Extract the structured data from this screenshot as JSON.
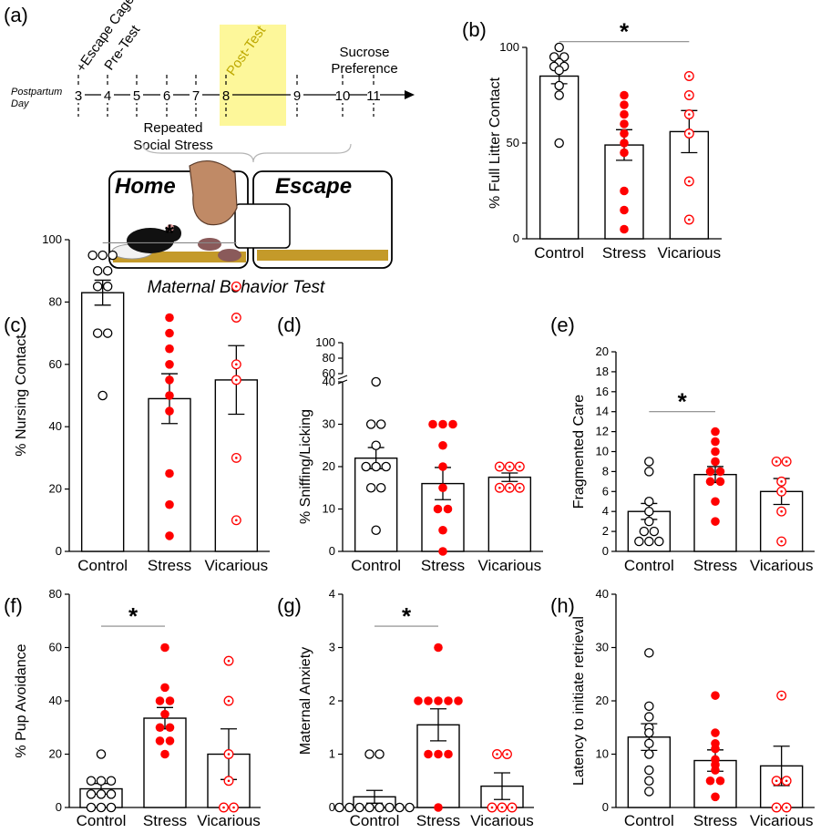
{
  "colors": {
    "control": "#000000",
    "stress": "#ff0000",
    "vicarious": "#ff0000",
    "highlight": "#fdf79a",
    "bracket": "#b5b5b5",
    "sig_line": "#888888"
  },
  "timeline": {
    "panel_label": "(a)",
    "axis_label_line1": "Postpartum",
    "axis_label_line2": "Day",
    "days": [
      "3",
      "4",
      "5",
      "6",
      "7",
      "8",
      "9",
      "10",
      "11"
    ],
    "event_escape": "+Escape Cage",
    "event_pretest": "Pre-Test",
    "event_posttest": "Post-Test",
    "event_sucrose_line1": "Sucrose",
    "event_sucrose_line2": "Preference",
    "stress_line1": "Repeated",
    "stress_line2": "Social Stress",
    "cage_home": "Home",
    "cage_escape": "Escape",
    "caption": "Maternal Behavior Test"
  },
  "chart_data": [
    {
      "id": "b",
      "panel_label": "(b)",
      "type": "bar",
      "ylabel": "% Full Litter Contact",
      "ylim": [
        0,
        100
      ],
      "yticks": [
        "0",
        "50",
        "100"
      ],
      "ytick_values": [
        0,
        50,
        100
      ],
      "categories": [
        "Control",
        "Stress",
        "Vicarious"
      ],
      "means": [
        85,
        49,
        56
      ],
      "sems": [
        4,
        8,
        11
      ],
      "points": [
        [
          100,
          95,
          95,
          92,
          90,
          90,
          88,
          80,
          75,
          50
        ],
        [
          75,
          70,
          65,
          60,
          55,
          50,
          45,
          25,
          15,
          5
        ],
        [
          85,
          75,
          65,
          55,
          30,
          10
        ]
      ],
      "significance": {
        "label": "*",
        "from": 0,
        "to": 2,
        "y": 103
      }
    },
    {
      "id": "c",
      "panel_label": "(c)",
      "type": "bar",
      "ylabel": "% Nursing Contact",
      "ylim": [
        0,
        100
      ],
      "yticks": [
        "0",
        "20",
        "40",
        "60",
        "80",
        "100"
      ],
      "ytick_values": [
        0,
        20,
        40,
        60,
        80,
        100
      ],
      "categories": [
        "Control",
        "Stress",
        "Vicarious"
      ],
      "means": [
        83,
        49,
        55
      ],
      "sems": [
        4,
        8,
        11
      ],
      "points": [
        [
          95,
          95,
          95,
          90,
          90,
          85,
          85,
          70,
          70,
          50
        ],
        [
          75,
          70,
          65,
          60,
          55,
          50,
          45,
          25,
          15,
          5
        ],
        [
          85,
          75,
          60,
          55,
          30,
          10
        ]
      ],
      "significance": {
        "label": "*",
        "from": 0,
        "to": 2,
        "y": 99
      }
    },
    {
      "id": "d",
      "panel_label": "(d)",
      "type": "bar",
      "ylabel": "%  Sniffing/Licking",
      "ylim": [
        0,
        40
      ],
      "broken_axis": true,
      "yticks": [
        "0",
        "10",
        "20",
        "30",
        "40"
      ],
      "ytick_values": [
        0,
        10,
        20,
        30,
        40
      ],
      "upper_ticks": [
        "60",
        "80",
        "100"
      ],
      "upper_tick_values": [
        60,
        80,
        100
      ],
      "categories": [
        "Control",
        "Stress",
        "Vicarious"
      ],
      "means": [
        22,
        16,
        17.5
      ],
      "sems": [
        2.5,
        3.8,
        1
      ],
      "points": [
        [
          40,
          30,
          30,
          25,
          20,
          20,
          20,
          15,
          15,
          5
        ],
        [
          30,
          30,
          30,
          25,
          20,
          15,
          10,
          10,
          5,
          0
        ],
        [
          20,
          20,
          20,
          15,
          15,
          15
        ]
      ],
      "significance": null
    },
    {
      "id": "e",
      "panel_label": "(e)",
      "type": "bar",
      "ylabel": "Fragmented Care",
      "ylim": [
        0,
        20
      ],
      "yticks": [
        "0",
        "2",
        "4",
        "6",
        "8",
        "10",
        "12",
        "14",
        "16",
        "18",
        "20"
      ],
      "ytick_values": [
        0,
        2,
        4,
        6,
        8,
        10,
        12,
        14,
        16,
        18,
        20
      ],
      "categories": [
        "Control",
        "Stress",
        "Vicarious"
      ],
      "means": [
        4,
        7.7,
        6
      ],
      "sems": [
        0.8,
        0.8,
        1.3
      ],
      "points": [
        [
          9,
          8,
          5,
          4,
          3,
          2,
          2,
          1,
          1,
          1
        ],
        [
          12,
          11,
          10,
          9,
          8,
          8,
          7,
          7,
          5,
          3
        ],
        [
          9,
          9,
          7,
          6,
          4,
          1
        ]
      ],
      "significance": {
        "label": "*",
        "from": 0,
        "to": 1,
        "y": 14
      }
    },
    {
      "id": "f",
      "panel_label": "(f)",
      "type": "bar",
      "ylabel": "% Pup Avoidance",
      "ylim": [
        0,
        80
      ],
      "yticks": [
        "0",
        "20",
        "40",
        "60",
        "80"
      ],
      "ytick_values": [
        0,
        20,
        40,
        60,
        80
      ],
      "categories": [
        "Control",
        "Stress",
        "Vicarious"
      ],
      "means": [
        7,
        33.5,
        20
      ],
      "sems": [
        2,
        4,
        9.5
      ],
      "points": [
        [
          20,
          10,
          10,
          10,
          5,
          5,
          5,
          0,
          0,
          0
        ],
        [
          60,
          45,
          40,
          40,
          35,
          30,
          30,
          25,
          25,
          20
        ],
        [
          55,
          40,
          20,
          10,
          0,
          0
        ]
      ],
      "significance": {
        "label": "*",
        "from": 0,
        "to": 1,
        "y": 68
      }
    },
    {
      "id": "g",
      "panel_label": "(g)",
      "type": "bar",
      "ylabel": "Maternal Anxiety",
      "ylim": [
        0,
        4
      ],
      "yticks": [
        "0",
        "1",
        "2",
        "3",
        "4"
      ],
      "ytick_values": [
        0,
        1,
        2,
        3,
        4
      ],
      "categories": [
        "Control",
        "Stress",
        "Vicarious"
      ],
      "means": [
        0.2,
        1.55,
        0.4
      ],
      "sems": [
        0.12,
        0.3,
        0.25
      ],
      "points": [
        [
          1,
          1,
          0,
          0,
          0,
          0,
          0,
          0,
          0,
          0
        ],
        [
          3,
          2,
          2,
          2,
          2,
          2,
          1,
          1,
          1,
          0
        ],
        [
          1,
          1,
          0,
          0,
          0
        ]
      ],
      "significance": {
        "label": "*",
        "from": 0,
        "to": 1,
        "y": 3.4
      }
    },
    {
      "id": "h",
      "panel_label": "(h)",
      "type": "bar",
      "ylabel": "Latency to initiate retrieval",
      "ylim": [
        0,
        40
      ],
      "yticks": [
        "0",
        "10",
        "20",
        "30",
        "40"
      ],
      "ytick_values": [
        0,
        10,
        20,
        30,
        40
      ],
      "categories": [
        "Control",
        "Stress",
        "Vicarious"
      ],
      "means": [
        13.2,
        8.8,
        7.8
      ],
      "sems": [
        2.5,
        2,
        3.7
      ],
      "points": [
        [
          29,
          19,
          17,
          15,
          14,
          12,
          10,
          7,
          5,
          3
        ],
        [
          21,
          14,
          12,
          11,
          9,
          8,
          7,
          5,
          5,
          2
        ],
        [
          21,
          5,
          5,
          0,
          0
        ]
      ],
      "significance": null
    }
  ]
}
